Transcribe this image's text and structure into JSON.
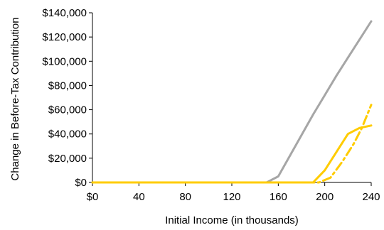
{
  "chart_data": {
    "type": "line",
    "title": "",
    "xlabel": "Initial Income (in thousands)",
    "ylabel": "Change in Before-Tax Contribution",
    "xlim": [
      0,
      240
    ],
    "ylim": [
      0,
      140000
    ],
    "x_ticks": [
      0,
      40,
      80,
      120,
      160,
      200,
      240
    ],
    "x_tick_labels": [
      "$0",
      "40",
      "80",
      "120",
      "160",
      "200",
      "240"
    ],
    "y_ticks": [
      0,
      20000,
      40000,
      60000,
      80000,
      100000,
      120000,
      140000
    ],
    "y_tick_labels": [
      "$0",
      "$20,000",
      "$40,000",
      "$60,000",
      "$80,000",
      "$100,000",
      "$120,000",
      "$140,000"
    ],
    "grid": false,
    "legend": "none",
    "series": [
      {
        "color": "#a6a6a6",
        "style": "solid",
        "points": [
          [
            0,
            0
          ],
          [
            150,
            0
          ],
          [
            160,
            5000
          ],
          [
            170,
            22000
          ],
          [
            180,
            39000
          ],
          [
            190,
            56000
          ],
          [
            200,
            72000
          ],
          [
            210,
            88000
          ],
          [
            220,
            103000
          ],
          [
            230,
            118000
          ],
          [
            240,
            133000
          ]
        ]
      },
      {
        "color": "#ffcc00",
        "style": "solid",
        "points": [
          [
            0,
            0
          ],
          [
            190,
            0
          ],
          [
            200,
            10000
          ],
          [
            210,
            25000
          ],
          [
            220,
            40000
          ],
          [
            230,
            45000
          ],
          [
            240,
            47000
          ]
        ]
      },
      {
        "color": "#ffcc00",
        "style": "dashdot",
        "points": [
          [
            0,
            0
          ],
          [
            195,
            0
          ],
          [
            205,
            4000
          ],
          [
            215,
            17000
          ],
          [
            225,
            32000
          ],
          [
            232,
            45000
          ],
          [
            240,
            64000
          ]
        ]
      }
    ]
  }
}
